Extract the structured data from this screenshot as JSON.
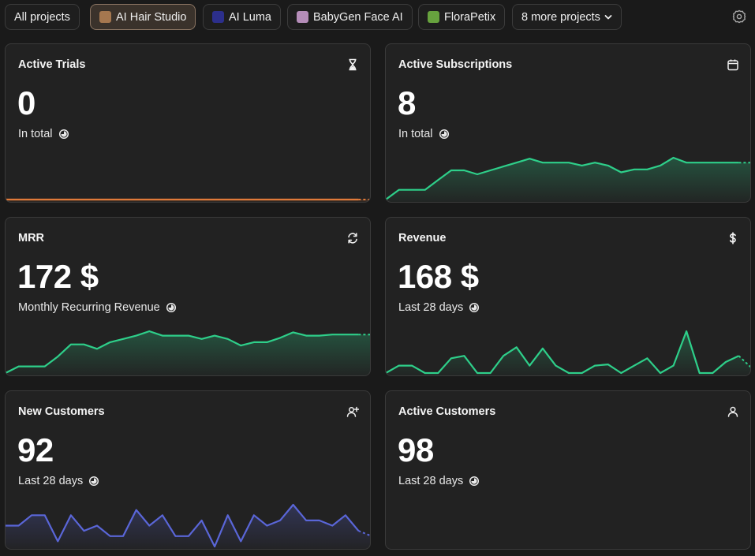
{
  "projects": {
    "all_label": "All projects",
    "items": [
      {
        "name": "AI Hair Studio",
        "color": "#a5774f",
        "active": true
      },
      {
        "name": "AI Luma",
        "color": "#2c2f8c",
        "active": false
      },
      {
        "name": "BabyGen Face AI",
        "color": "#b58db9",
        "active": false
      },
      {
        "name": "FloraPetix",
        "color": "#67a23e",
        "active": false
      }
    ],
    "more_label": "8 more projects"
  },
  "cards": [
    {
      "title": "Active Trials",
      "value": "0",
      "subtitle": "In total",
      "icon": "hourglass-icon",
      "color": "#e07a3a",
      "series": [
        0,
        0,
        0,
        0,
        0,
        0,
        0,
        0,
        0,
        0,
        0,
        0,
        0,
        0,
        0,
        0,
        0,
        0,
        0,
        0,
        0,
        0,
        0,
        0,
        0,
        0,
        0,
        0,
        0
      ]
    },
    {
      "title": "Active Subscriptions",
      "value": "8",
      "subtitle": "In total",
      "icon": "calendar-icon",
      "color": "#2ecf8a",
      "series": [
        0,
        1,
        1,
        1,
        2,
        3,
        3,
        2.6,
        3,
        3.4,
        3.8,
        4.2,
        3.8,
        3.8,
        3.8,
        3.5,
        3.8,
        3.5,
        2.8,
        3.1,
        3.1,
        3.5,
        4.3,
        3.8,
        3.8,
        3.8,
        3.8,
        3.8,
        3.8
      ]
    },
    {
      "title": "MRR",
      "value": "172 $",
      "subtitle": "Monthly Recurring Revenue",
      "icon": "refresh-dollar-icon",
      "color": "#2ecf8a",
      "series": [
        0,
        6,
        6,
        6,
        15,
        26,
        26,
        22,
        28,
        31,
        34,
        38,
        34,
        34,
        34,
        31,
        34,
        31,
        25,
        28,
        28,
        32,
        37,
        34,
        34,
        35,
        35,
        35,
        35
      ]
    },
    {
      "title": "Revenue",
      "value": "168 $",
      "subtitle": "Last 28 days",
      "icon": "dollar-icon",
      "color": "#2ecf8a",
      "series": [
        0,
        6,
        6,
        0,
        0,
        12,
        14,
        0,
        0,
        14,
        21,
        6,
        20,
        6,
        0,
        0,
        6,
        7,
        0,
        6,
        12,
        0,
        6,
        34,
        0,
        0,
        9,
        14,
        4
      ]
    },
    {
      "title": "New Customers",
      "value": "92",
      "subtitle": "Last 28 days",
      "icon": "add-user-icon",
      "color": "#5a66d8",
      "series": [
        3,
        3,
        5,
        5,
        0,
        5,
        2,
        3,
        1,
        1,
        6,
        3,
        5,
        1,
        1,
        4,
        -1,
        5,
        0,
        5,
        3,
        4,
        7,
        4,
        4,
        3,
        5,
        2,
        1
      ]
    },
    {
      "title": "Active Customers",
      "value": "98",
      "subtitle": "Last 28 days",
      "icon": "user-icon",
      "color": "#2ecf8a",
      "series": []
    }
  ]
}
